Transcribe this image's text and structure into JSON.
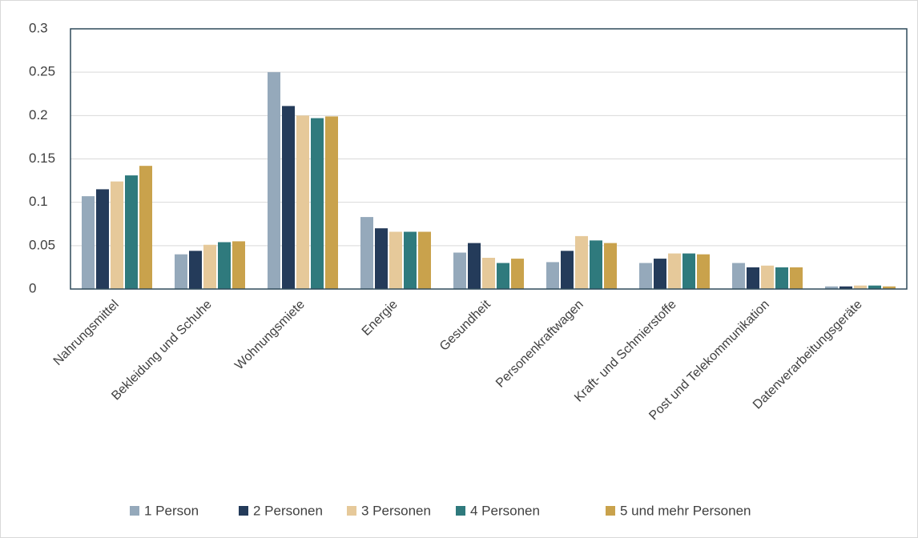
{
  "chart_data": {
    "type": "bar",
    "categories": [
      "Nahrungsmittel",
      "Bekleidung und Schuhe",
      "Wohnungsmiete",
      "Energie",
      "Gesundheit",
      "Personenkraftwagen",
      "Kraft- und Schmierstoffe",
      "Post und Telekommunikation",
      "Datenverarbeitungsgeräte"
    ],
    "series": [
      {
        "name": "1 Person",
        "color": "#95a9bb",
        "values": [
          0.107,
          0.04,
          0.25,
          0.083,
          0.042,
          0.031,
          0.03,
          0.03,
          0.003
        ]
      },
      {
        "name": "2 Personen",
        "color": "#243b5a",
        "values": [
          0.115,
          0.044,
          0.211,
          0.07,
          0.053,
          0.044,
          0.035,
          0.025,
          0.003
        ]
      },
      {
        "name": "3 Personen",
        "color": "#e6c99a",
        "values": [
          0.124,
          0.051,
          0.2,
          0.066,
          0.036,
          0.061,
          0.041,
          0.027,
          0.004
        ]
      },
      {
        "name": "4 Personen",
        "color": "#2f7a7d",
        "values": [
          0.131,
          0.054,
          0.197,
          0.066,
          0.03,
          0.056,
          0.041,
          0.025,
          0.004
        ]
      },
      {
        "name": "5 und mehr Personen",
        "color": "#c9a24c",
        "values": [
          0.142,
          0.055,
          0.199,
          0.066,
          0.035,
          0.053,
          0.04,
          0.025,
          0.003
        ]
      }
    ],
    "ylim": [
      0,
      0.3
    ],
    "yticks": [
      0,
      0.05,
      0.1,
      0.15,
      0.2,
      0.25,
      0.3
    ],
    "grid": true,
    "legend": "bottom"
  }
}
